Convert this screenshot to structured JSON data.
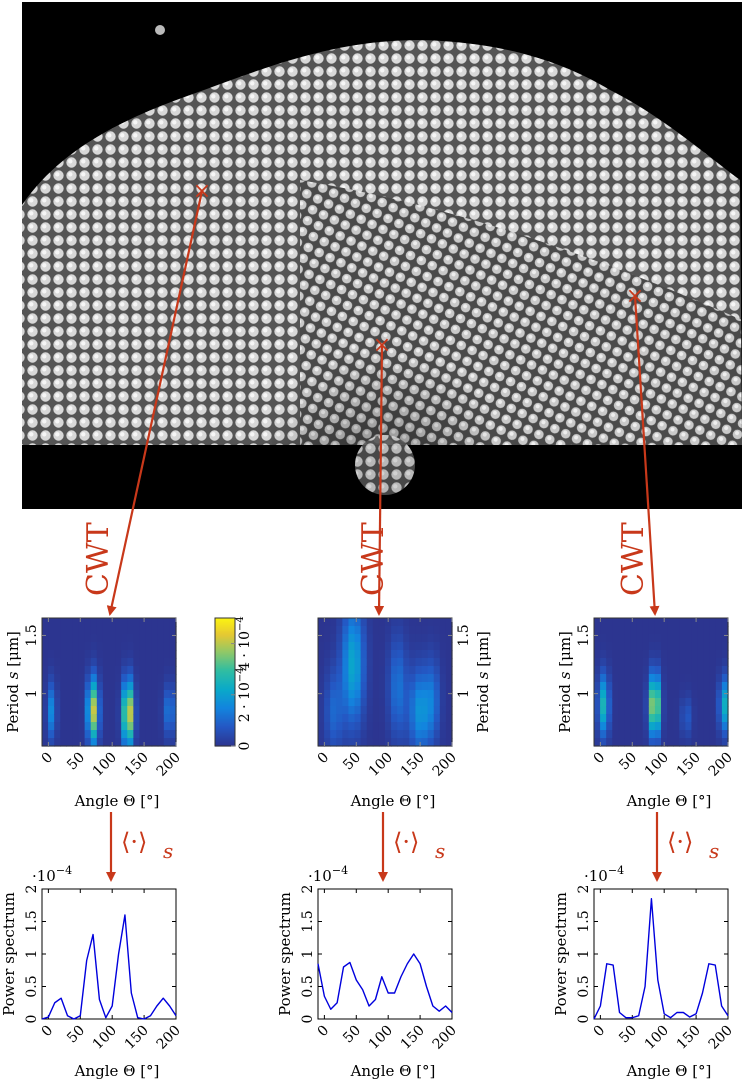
{
  "micrograph": {
    "points": [
      {
        "id": "left",
        "marker": "×"
      },
      {
        "id": "center",
        "marker": "×"
      },
      {
        "id": "right",
        "marker": "×"
      }
    ]
  },
  "transforms": {
    "cwt_label": "CWT",
    "avg_label": "⟨·⟩",
    "avg_subscript": "s"
  },
  "colors": {
    "arrow": "#c8381a",
    "line": "#0000dd",
    "heatmap_bg": "#2c3590"
  },
  "colorbar": {
    "ticks": [
      "0",
      "2 · 10",
      "4 · 10"
    ],
    "tick_exp": "−4",
    "ticks_values": [
      0,
      0.0002,
      0.0004
    ],
    "range": [
      0,
      0.0005
    ]
  },
  "heatmap_axes": {
    "ylabel_main": "Period ",
    "ylabel_var": "s",
    "ylabel_unit": " [μm]",
    "yticks": [
      "1",
      "1.5"
    ],
    "xticks": [
      "0",
      "50",
      "100",
      "150",
      "200"
    ],
    "xlabel": "Angle Θ [°]"
  },
  "line_axes": {
    "ylabel": "Power spectrum",
    "yticks": [
      "0",
      "0.5",
      "1",
      "1.5",
      "2"
    ],
    "xticks": [
      "0",
      "50",
      "100",
      "150",
      "200"
    ],
    "xlabel": "Angle Θ [°]",
    "scale_label": "·10",
    "scale_exp": "−4"
  },
  "chart_data": [
    {
      "type": "line",
      "panel": "left",
      "x": [
        -10,
        0,
        10,
        20,
        30,
        40,
        50,
        60,
        70,
        80,
        90,
        100,
        110,
        120,
        130,
        140,
        150,
        160,
        170,
        180,
        190,
        200
      ],
      "series": [
        {
          "values": [
            0.0,
            0.03,
            0.25,
            0.32,
            0.05,
            0.0,
            0.05,
            0.9,
            1.3,
            0.3,
            0.02,
            0.2,
            1.0,
            1.6,
            0.4,
            0.02,
            0.0,
            0.05,
            0.2,
            0.32,
            0.2,
            0.05
          ]
        }
      ],
      "xlim": [
        -10,
        200
      ],
      "ylim": [
        0,
        2
      ],
      "y_scale": "1e-4"
    },
    {
      "type": "line",
      "panel": "center",
      "x": [
        -10,
        0,
        10,
        20,
        30,
        40,
        50,
        60,
        70,
        80,
        90,
        100,
        110,
        120,
        130,
        140,
        150,
        160,
        170,
        180,
        190,
        200
      ],
      "series": [
        {
          "values": [
            0.85,
            0.35,
            0.15,
            0.25,
            0.8,
            0.87,
            0.6,
            0.45,
            0.2,
            0.3,
            0.65,
            0.4,
            0.4,
            0.65,
            0.85,
            1.0,
            0.85,
            0.5,
            0.2,
            0.12,
            0.2,
            0.1
          ]
        }
      ],
      "xlim": [
        -10,
        200
      ],
      "ylim": [
        0,
        2
      ],
      "y_scale": "1e-4"
    },
    {
      "type": "line",
      "panel": "right",
      "x": [
        -10,
        0,
        10,
        20,
        30,
        40,
        50,
        60,
        70,
        80,
        90,
        100,
        110,
        120,
        130,
        140,
        150,
        160,
        170,
        180,
        190,
        200
      ],
      "series": [
        {
          "values": [
            0.0,
            0.2,
            0.85,
            0.83,
            0.1,
            0.02,
            0.02,
            0.05,
            0.5,
            1.85,
            0.6,
            0.08,
            0.02,
            0.1,
            0.1,
            0.03,
            0.08,
            0.4,
            0.85,
            0.83,
            0.2,
            0.05
          ]
        }
      ],
      "xlim": [
        -10,
        200
      ],
      "ylim": [
        0,
        2
      ],
      "y_scale": "1e-4"
    },
    {
      "type": "heatmap",
      "panel": "left",
      "xlim": [
        -10,
        200
      ],
      "ylim": [
        0.55,
        1.65
      ],
      "blobs": [
        {
          "x": 5,
          "y": 0.85,
          "sx": 5,
          "sy": 0.17,
          "value": 0.00016
        },
        {
          "x": 70,
          "y": 0.85,
          "sx": 6,
          "sy": 0.19,
          "value": 0.00042
        },
        {
          "x": 125,
          "y": 0.83,
          "sx": 6,
          "sy": 0.19,
          "value": 0.00048
        },
        {
          "x": 190,
          "y": 0.85,
          "sx": 6,
          "sy": 0.15,
          "value": 0.00014
        }
      ]
    },
    {
      "type": "heatmap",
      "panel": "center",
      "xlim": [
        -10,
        200
      ],
      "ylim": [
        0.55,
        1.65
      ],
      "blobs": [
        {
          "x": 45,
          "y": 1.25,
          "sx": 12,
          "sy": 0.35,
          "value": 0.00022
        },
        {
          "x": 15,
          "y": 0.85,
          "sx": 10,
          "sy": 0.25,
          "value": 0.0001
        },
        {
          "x": 115,
          "y": 1.05,
          "sx": 10,
          "sy": 0.3,
          "value": 0.00012
        },
        {
          "x": 150,
          "y": 0.85,
          "sx": 12,
          "sy": 0.25,
          "value": 0.00018
        },
        {
          "x": 170,
          "y": 0.95,
          "sx": 8,
          "sy": 0.25,
          "value": 0.0001
        }
      ]
    },
    {
      "type": "heatmap",
      "panel": "right",
      "xlim": [
        -10,
        200
      ],
      "ylim": [
        0.55,
        1.65
      ],
      "blobs": [
        {
          "x": 5,
          "y": 0.9,
          "sx": 6,
          "sy": 0.18,
          "value": 0.00026
        },
        {
          "x": 85,
          "y": 0.9,
          "sx": 6,
          "sy": 0.18,
          "value": 0.00046
        },
        {
          "x": 135,
          "y": 0.8,
          "sx": 6,
          "sy": 0.12,
          "value": 8e-05
        },
        {
          "x": 195,
          "y": 0.9,
          "sx": 6,
          "sy": 0.16,
          "value": 0.00024
        }
      ]
    }
  ]
}
